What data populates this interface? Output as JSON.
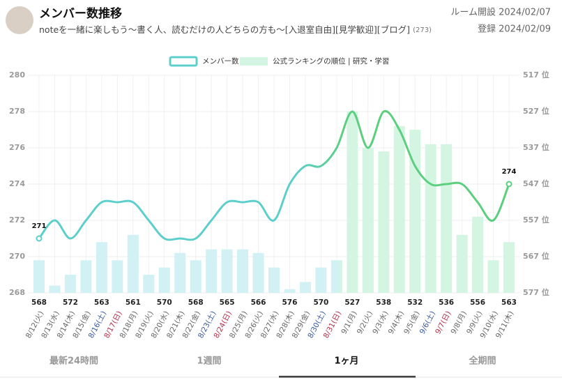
{
  "header": {
    "title": "メンバー数推移",
    "subtitle": "noteを一緒に楽しもう～書く人、読むだけの人どちらの方も～[入退室自由][見学歓迎][ブログ]",
    "member_count": "(273)",
    "created": "ルーム開設 2024/02/07",
    "registered": "登録 2024/02/09"
  },
  "tabs": [
    "最新24時間",
    "1週間",
    "1ヶ月",
    "全期間"
  ],
  "chart_data": {
    "type": "line",
    "categories": [
      "8/12(火)",
      "8/13(水)",
      "8/14(木)",
      "8/15(金)",
      "8/16(土)",
      "8/17(日)",
      "8/18(月)",
      "8/19(火)",
      "8/20(水)",
      "8/21(木)",
      "8/22(金)",
      "8/23(土)",
      "8/24(日)",
      "8/25(月)",
      "8/26(火)",
      "8/27(水)",
      "8/28(木)",
      "8/29(金)",
      "8/30(土)",
      "8/31(日)",
      "9/1(月)",
      "9/2(火)",
      "9/3(水)",
      "9/4(木)",
      "9/5(金)",
      "9/6(土)",
      "9/7(日)",
      "9/8(月)",
      "9/9(火)",
      "9/10(水)",
      "9/11(木)"
    ],
    "series": [
      {
        "name": "メンバー数",
        "type": "line",
        "color": "#5ccfcc",
        "color_end": "#5ccf7e",
        "values": [
          271,
          272,
          271,
          272,
          273,
          273,
          273,
          272,
          271,
          271,
          271,
          272,
          273,
          273,
          273,
          272,
          274,
          275,
          275,
          276,
          278,
          276,
          278,
          277,
          275,
          274,
          274,
          274,
          273,
          272,
          274
        ]
      },
      {
        "name": "公式ランキングの順位 | 研究・学習",
        "type": "bar",
        "axis": "y2",
        "color": "#d2f1f4",
        "color_end": "#d3f5e2",
        "values": [
          568,
          575,
          572,
          568,
          563,
          568,
          561,
          572,
          570,
          566,
          568,
          565,
          565,
          565,
          566,
          570,
          576,
          574,
          570,
          568,
          527,
          537,
          538,
          531,
          532,
          536,
          536,
          561,
          556,
          568,
          563
        ]
      }
    ],
    "ylim": [
      268,
      280
    ],
    "yticks": [
      268,
      270,
      272,
      274,
      276,
      278,
      280
    ],
    "y2lim": [
      577,
      517
    ],
    "y2ticks": [
      {
        "value": 517,
        "label": "517 位"
      },
      {
        "value": 527,
        "label": "527 位"
      },
      {
        "value": 537,
        "label": "537 位"
      },
      {
        "value": 547,
        "label": "547 位"
      },
      {
        "value": 557,
        "label": "557 位"
      },
      {
        "value": 567,
        "label": "567 位"
      },
      {
        "value": 577,
        "label": "577 位"
      }
    ],
    "grid": true
  }
}
